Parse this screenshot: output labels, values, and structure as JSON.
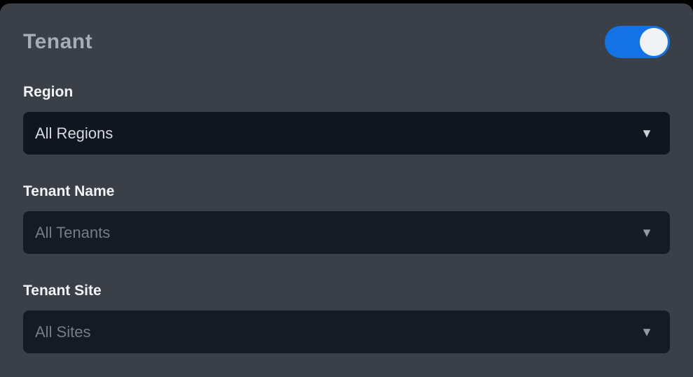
{
  "panel": {
    "title": "Tenant",
    "toggle": {
      "name": "tenant-filter-toggle",
      "state": "on"
    }
  },
  "fields": [
    {
      "label": "Region",
      "value": "All Regions",
      "disabled": false
    },
    {
      "label": "Tenant Name",
      "value": "All Tenants",
      "disabled": true
    },
    {
      "label": "Tenant Site",
      "value": "All Sites",
      "disabled": true
    }
  ],
  "icons": {
    "caret": "▼"
  },
  "colors": {
    "page_bg": "#000000",
    "panel_bg": "#3a3f48",
    "accent": "#1373e6",
    "knob": "#f1f2f4",
    "title": "#a7adb7",
    "label": "#f2f3f5",
    "input_bg": "#11151e",
    "input_bg_disabled": "#151a23",
    "value": "#d6d9dd",
    "value_disabled": "#767c86",
    "caret": "#ccd0d5",
    "caret_disabled": "#949aa2"
  }
}
